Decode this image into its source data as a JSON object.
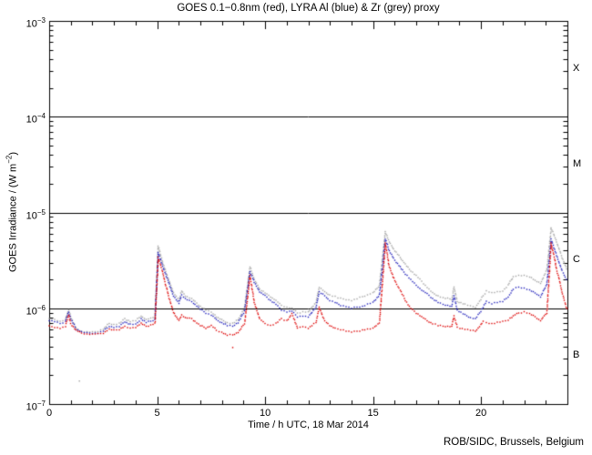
{
  "chart": {
    "title": "GOES 0.1−0.8nm (red), LYRA Al (blue) & Zr (grey) proxy",
    "xlabel": "Time / h UTC, 18 Mar 2014",
    "ylabel_prefix": "GOES Irradiance / (W m",
    "ylabel_sup": "−2",
    "ylabel_suffix": ")",
    "credit": "ROB/SIDC, Brussels, Belgium"
  },
  "chart_data": {
    "type": "scatter",
    "marker": "dot",
    "grid": false,
    "background": "#ffffff",
    "axis_color": "#000000",
    "x_range": [
      0,
      24
    ],
    "y_log_range": [
      -7,
      -3
    ],
    "x_major_ticks": [
      0,
      5,
      10,
      15,
      20
    ],
    "x_minor_step": 1,
    "y_decades": [
      -7,
      -6,
      -5,
      -4,
      -3
    ],
    "y_tick_labels": [
      {
        "base": "10",
        "exp": "−3",
        "log": -3
      },
      {
        "base": "10",
        "exp": "−4",
        "log": -4
      },
      {
        "base": "10",
        "exp": "−5",
        "log": -5
      },
      {
        "base": "10",
        "exp": "−6",
        "log": -6
      },
      {
        "base": "10",
        "exp": "−7",
        "log": -7
      }
    ],
    "reference_lines": [
      -4,
      -5,
      -6
    ],
    "flare_classes": [
      {
        "label": "X",
        "log": -3.5
      },
      {
        "label": "M",
        "log": -4.5
      },
      {
        "label": "C",
        "log": -5.5
      },
      {
        "label": "B",
        "log": -6.5
      }
    ],
    "series": [
      {
        "name": "LYRA Zr proxy (grey)",
        "color": "#a3a3a3",
        "points": [
          [
            0,
            -6.11
          ],
          [
            0.25,
            -6.12
          ],
          [
            0.5,
            -6.14
          ],
          [
            0.75,
            -6.12
          ],
          [
            0.9,
            -6.02
          ],
          [
            1,
            -6.09
          ],
          [
            1.25,
            -6.21
          ],
          [
            1.5,
            -6.24
          ],
          [
            1.75,
            -6.25
          ],
          [
            2,
            -6.25
          ],
          [
            2.25,
            -6.24
          ],
          [
            2.5,
            -6.22
          ],
          [
            2.78,
            -6.16
          ],
          [
            3,
            -6.17
          ],
          [
            3.25,
            -6.16
          ],
          [
            3.5,
            -6.11
          ],
          [
            3.75,
            -6.14
          ],
          [
            4,
            -6.13
          ],
          [
            4.25,
            -6.08
          ],
          [
            4.5,
            -6.12
          ],
          [
            4.9,
            -6.09
          ],
          [
            5.05,
            -5.35
          ],
          [
            5.25,
            -5.52
          ],
          [
            5.5,
            -5.68
          ],
          [
            5.75,
            -5.84
          ],
          [
            6,
            -5.92
          ],
          [
            6.13,
            -5.82
          ],
          [
            6.3,
            -5.87
          ],
          [
            6.6,
            -5.9
          ],
          [
            6.75,
            -5.93
          ],
          [
            7,
            -5.98
          ],
          [
            7.25,
            -6.02
          ],
          [
            7.5,
            -6.04
          ],
          [
            7.75,
            -6.09
          ],
          [
            8,
            -6.12
          ],
          [
            8.25,
            -6.15
          ],
          [
            8.5,
            -6.16
          ],
          [
            8.75,
            -6.12
          ],
          [
            9.05,
            -6.0
          ],
          [
            9.3,
            -5.57
          ],
          [
            9.5,
            -5.7
          ],
          [
            9.75,
            -5.8
          ],
          [
            10,
            -5.84
          ],
          [
            10.25,
            -5.88
          ],
          [
            10.5,
            -5.92
          ],
          [
            10.75,
            -5.97
          ],
          [
            11,
            -5.99
          ],
          [
            11.25,
            -6.0
          ],
          [
            11.5,
            -6.05
          ],
          [
            11.75,
            -6.04
          ],
          [
            12,
            -6.04
          ],
          [
            12.35,
            -5.94
          ],
          [
            12.5,
            -5.78
          ],
          [
            12.75,
            -5.83
          ],
          [
            13,
            -5.86
          ],
          [
            13.25,
            -5.88
          ],
          [
            13.5,
            -5.9
          ],
          [
            13.75,
            -5.91
          ],
          [
            14,
            -5.92
          ],
          [
            14.25,
            -5.9
          ],
          [
            14.5,
            -5.88
          ],
          [
            14.75,
            -5.86
          ],
          [
            15,
            -5.84
          ],
          [
            15.3,
            -5.76
          ],
          [
            15.57,
            -5.2
          ],
          [
            15.75,
            -5.31
          ],
          [
            16,
            -5.4
          ],
          [
            16.25,
            -5.47
          ],
          [
            16.5,
            -5.54
          ],
          [
            16.75,
            -5.61
          ],
          [
            17,
            -5.66
          ],
          [
            17.25,
            -5.72
          ],
          [
            17.5,
            -5.78
          ],
          [
            17.75,
            -5.84
          ],
          [
            18,
            -5.87
          ],
          [
            18.25,
            -5.89
          ],
          [
            18.65,
            -5.91
          ],
          [
            18.75,
            -5.78
          ],
          [
            18.9,
            -5.93
          ],
          [
            19.25,
            -5.96
          ],
          [
            19.5,
            -5.98
          ],
          [
            19.75,
            -5.99
          ],
          [
            20.1,
            -5.87
          ],
          [
            20.25,
            -5.82
          ],
          [
            20.5,
            -5.84
          ],
          [
            20.75,
            -5.83
          ],
          [
            21,
            -5.82
          ],
          [
            21.25,
            -5.76
          ],
          [
            21.5,
            -5.67
          ],
          [
            21.75,
            -5.66
          ],
          [
            22,
            -5.66
          ],
          [
            22.25,
            -5.67
          ],
          [
            22.5,
            -5.71
          ],
          [
            22.75,
            -5.74
          ],
          [
            23.05,
            -5.6
          ],
          [
            23.25,
            -5.16
          ],
          [
            23.5,
            -5.31
          ],
          [
            23.75,
            -5.47
          ],
          [
            24,
            -5.61
          ]
        ]
      },
      {
        "name": "LYRA Al proxy (blue)",
        "color": "#2222bb",
        "points": [
          [
            0,
            -6.13
          ],
          [
            0.25,
            -6.14
          ],
          [
            0.5,
            -6.16
          ],
          [
            0.75,
            -6.14
          ],
          [
            0.9,
            -6.04
          ],
          [
            1,
            -6.11
          ],
          [
            1.25,
            -6.22
          ],
          [
            1.5,
            -6.25
          ],
          [
            1.75,
            -6.26
          ],
          [
            2,
            -6.26
          ],
          [
            2.25,
            -6.26
          ],
          [
            2.5,
            -6.24
          ],
          [
            2.78,
            -6.19
          ],
          [
            3,
            -6.2
          ],
          [
            3.25,
            -6.19
          ],
          [
            3.5,
            -6.14
          ],
          [
            3.75,
            -6.17
          ],
          [
            4,
            -6.17
          ],
          [
            4.25,
            -6.11
          ],
          [
            4.5,
            -6.15
          ],
          [
            4.9,
            -6.12
          ],
          [
            5.05,
            -5.42
          ],
          [
            5.25,
            -5.56
          ],
          [
            5.5,
            -5.71
          ],
          [
            5.75,
            -5.87
          ],
          [
            6,
            -5.95
          ],
          [
            6.13,
            -5.86
          ],
          [
            6.3,
            -5.9
          ],
          [
            6.6,
            -5.93
          ],
          [
            6.75,
            -5.96
          ],
          [
            7,
            -6.01
          ],
          [
            7.25,
            -6.05
          ],
          [
            7.5,
            -6.07
          ],
          [
            7.75,
            -6.12
          ],
          [
            8,
            -6.15
          ],
          [
            8.25,
            -6.18
          ],
          [
            8.5,
            -6.19
          ],
          [
            8.75,
            -6.15
          ],
          [
            9.05,
            -6.03
          ],
          [
            9.3,
            -5.62
          ],
          [
            9.5,
            -5.73
          ],
          [
            9.75,
            -5.83
          ],
          [
            10,
            -5.87
          ],
          [
            10.25,
            -5.92
          ],
          [
            10.5,
            -5.96
          ],
          [
            10.75,
            -6.02
          ],
          [
            11,
            -6.04
          ],
          [
            11.25,
            -6.03
          ],
          [
            11.5,
            -6.09
          ],
          [
            11.75,
            -6.08
          ],
          [
            12,
            -6.09
          ],
          [
            12.35,
            -5.99
          ],
          [
            12.5,
            -5.83
          ],
          [
            12.75,
            -5.87
          ],
          [
            13,
            -5.92
          ],
          [
            13.25,
            -5.94
          ],
          [
            13.5,
            -5.97
          ],
          [
            13.75,
            -5.98
          ],
          [
            14,
            -6.0
          ],
          [
            14.25,
            -5.99
          ],
          [
            14.5,
            -5.98
          ],
          [
            14.75,
            -5.96
          ],
          [
            15,
            -5.94
          ],
          [
            15.3,
            -5.86
          ],
          [
            15.57,
            -5.28
          ],
          [
            15.75,
            -5.4
          ],
          [
            16,
            -5.5
          ],
          [
            16.25,
            -5.57
          ],
          [
            16.5,
            -5.64
          ],
          [
            16.75,
            -5.7
          ],
          [
            17,
            -5.76
          ],
          [
            17.25,
            -5.81
          ],
          [
            17.5,
            -5.85
          ],
          [
            17.75,
            -5.9
          ],
          [
            18,
            -5.94
          ],
          [
            18.25,
            -5.96
          ],
          [
            18.65,
            -5.98
          ],
          [
            18.75,
            -5.87
          ],
          [
            18.9,
            -6.02
          ],
          [
            19.25,
            -6.07
          ],
          [
            19.5,
            -6.1
          ],
          [
            19.75,
            -6.11
          ],
          [
            20.1,
            -5.99
          ],
          [
            20.25,
            -5.93
          ],
          [
            20.5,
            -5.95
          ],
          [
            20.75,
            -5.94
          ],
          [
            21,
            -5.93
          ],
          [
            21.25,
            -5.88
          ],
          [
            21.5,
            -5.8
          ],
          [
            21.75,
            -5.78
          ],
          [
            22,
            -5.79
          ],
          [
            22.25,
            -5.81
          ],
          [
            22.5,
            -5.84
          ],
          [
            22.75,
            -5.88
          ],
          [
            23.05,
            -5.75
          ],
          [
            23.25,
            -5.28
          ],
          [
            23.5,
            -5.45
          ],
          [
            23.75,
            -5.61
          ],
          [
            24,
            -5.72
          ]
        ]
      },
      {
        "name": "GOES 0.1−0.8nm (red)",
        "color": "#dd0000",
        "points": [
          [
            0,
            -6.19
          ],
          [
            0.25,
            -6.2
          ],
          [
            0.5,
            -6.21
          ],
          [
            0.75,
            -6.19
          ],
          [
            0.9,
            -6.07
          ],
          [
            1,
            -6.16
          ],
          [
            1.25,
            -6.23
          ],
          [
            1.5,
            -6.26
          ],
          [
            1.75,
            -6.27
          ],
          [
            2,
            -6.27
          ],
          [
            2.25,
            -6.27
          ],
          [
            2.5,
            -6.26
          ],
          [
            2.78,
            -6.22
          ],
          [
            3,
            -6.23
          ],
          [
            3.25,
            -6.22
          ],
          [
            3.5,
            -6.19
          ],
          [
            3.75,
            -6.21
          ],
          [
            4,
            -6.2
          ],
          [
            4.25,
            -6.16
          ],
          [
            4.5,
            -6.19
          ],
          [
            4.9,
            -6.16
          ],
          [
            5.05,
            -5.47
          ],
          [
            5.25,
            -5.62
          ],
          [
            5.5,
            -5.85
          ],
          [
            5.75,
            -6.04
          ],
          [
            6,
            -6.13
          ],
          [
            6.13,
            -6.07
          ],
          [
            6.3,
            -6.1
          ],
          [
            6.6,
            -6.11
          ],
          [
            6.75,
            -6.14
          ],
          [
            7,
            -6.18
          ],
          [
            7.25,
            -6.21
          ],
          [
            7.5,
            -6.18
          ],
          [
            7.75,
            -6.23
          ],
          [
            8,
            -6.25
          ],
          [
            8.25,
            -6.28
          ],
          [
            8.5,
            -6.28
          ],
          [
            8.75,
            -6.25
          ],
          [
            9.05,
            -6.16
          ],
          [
            9.3,
            -5.66
          ],
          [
            9.5,
            -5.94
          ],
          [
            9.75,
            -6.11
          ],
          [
            10,
            -6.16
          ],
          [
            10.25,
            -6.18
          ],
          [
            10.5,
            -6.16
          ],
          [
            10.75,
            -6.11
          ],
          [
            11,
            -6.13
          ],
          [
            11.25,
            -6.06
          ],
          [
            11.5,
            -6.21
          ],
          [
            11.75,
            -6.19
          ],
          [
            12,
            -6.21
          ],
          [
            12.35,
            -6.15
          ],
          [
            12.5,
            -5.99
          ],
          [
            12.75,
            -6.13
          ],
          [
            13,
            -6.18
          ],
          [
            13.25,
            -6.21
          ],
          [
            13.5,
            -6.22
          ],
          [
            13.75,
            -6.24
          ],
          [
            14,
            -6.25
          ],
          [
            14.25,
            -6.24
          ],
          [
            14.5,
            -6.23
          ],
          [
            14.75,
            -6.22
          ],
          [
            15,
            -6.21
          ],
          [
            15.3,
            -6.15
          ],
          [
            15.57,
            -5.32
          ],
          [
            15.75,
            -5.57
          ],
          [
            16,
            -5.71
          ],
          [
            16.25,
            -5.81
          ],
          [
            16.5,
            -5.92
          ],
          [
            16.75,
            -6.0
          ],
          [
            17,
            -6.05
          ],
          [
            17.25,
            -6.09
          ],
          [
            17.5,
            -6.13
          ],
          [
            17.75,
            -6.16
          ],
          [
            18,
            -6.18
          ],
          [
            18.25,
            -6.19
          ],
          [
            18.65,
            -6.19
          ],
          [
            18.75,
            -6.08
          ],
          [
            18.9,
            -6.2
          ],
          [
            19.25,
            -6.22
          ],
          [
            19.5,
            -6.23
          ],
          [
            19.75,
            -6.24
          ],
          [
            20.1,
            -6.14
          ],
          [
            20.25,
            -6.15
          ],
          [
            20.5,
            -6.16
          ],
          [
            20.75,
            -6.15
          ],
          [
            21,
            -6.14
          ],
          [
            21.25,
            -6.12
          ],
          [
            21.5,
            -6.08
          ],
          [
            21.75,
            -6.05
          ],
          [
            22,
            -6.04
          ],
          [
            22.25,
            -6.06
          ],
          [
            22.5,
            -6.09
          ],
          [
            22.75,
            -6.13
          ],
          [
            23.05,
            -6.05
          ],
          [
            23.25,
            -5.32
          ],
          [
            23.5,
            -5.59
          ],
          [
            23.75,
            -5.83
          ],
          [
            24,
            -6.03
          ]
        ]
      }
    ],
    "outliers": [
      {
        "color": "#a3a3a3",
        "t": 1.4,
        "log": -6.76
      },
      {
        "color": "#dd0000",
        "t": 8.5,
        "log": -6.41
      }
    ]
  }
}
